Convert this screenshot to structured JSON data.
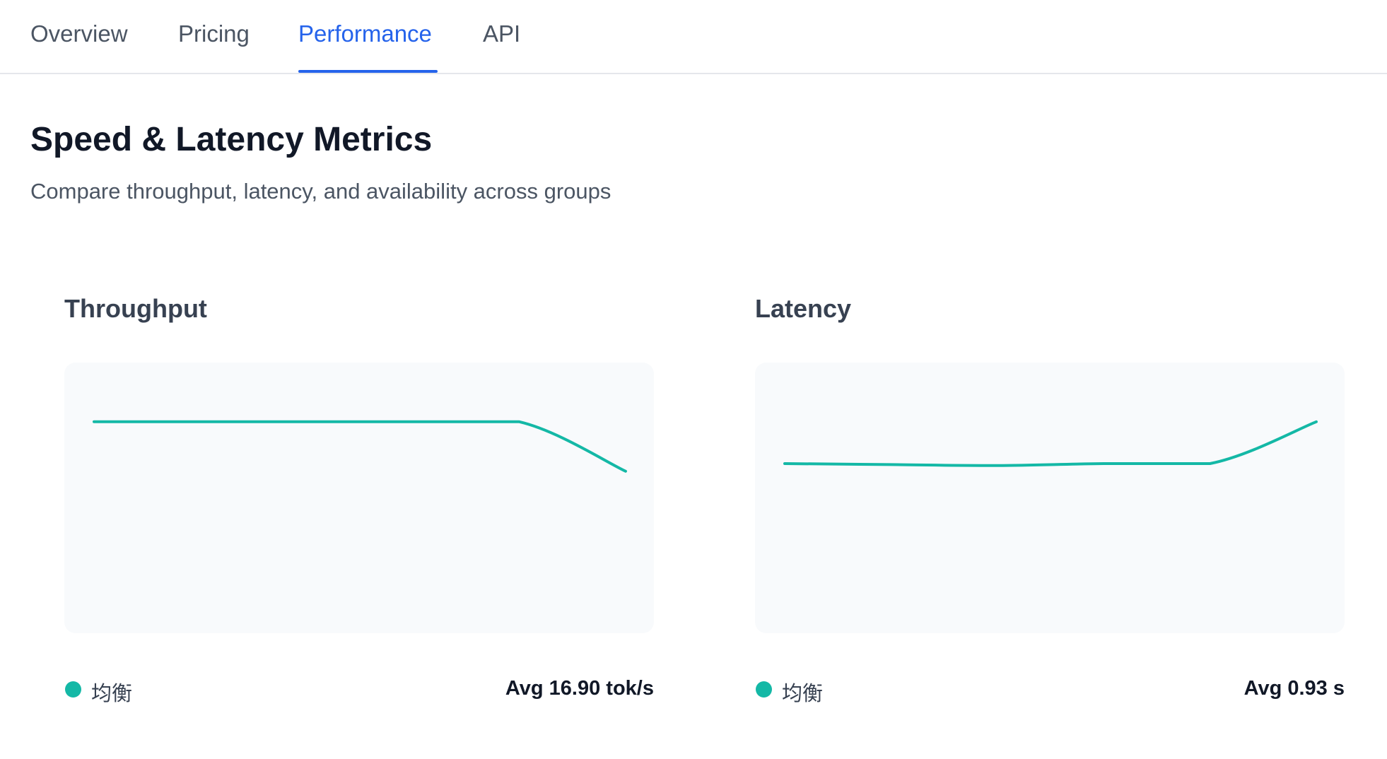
{
  "tabs": [
    {
      "label": "Overview"
    },
    {
      "label": "Pricing"
    },
    {
      "label": "Performance",
      "active": true
    },
    {
      "label": "API"
    }
  ],
  "page": {
    "title": "Speed & Latency Metrics",
    "subtitle": "Compare throughput, latency, and availability across groups"
  },
  "colors": {
    "accent": "#2563eb",
    "series": "#14b8a6"
  },
  "panels": [
    {
      "title": "Throughput",
      "legend_label": "均衡",
      "avg_text": "Avg 16.90 tok/s"
    },
    {
      "title": "Latency",
      "legend_label": "均衡",
      "avg_text": "Avg 0.93 s"
    }
  ],
  "chart_data": [
    {
      "type": "line",
      "title": "Throughput",
      "x": [
        0,
        1,
        2,
        3,
        4,
        5
      ],
      "series": [
        {
          "name": "均衡",
          "values": [
            1.0,
            1.0,
            1.0,
            1.0,
            1.0,
            0.74
          ]
        }
      ],
      "ylim": [
        0,
        1.2
      ],
      "grid": false
    },
    {
      "type": "line",
      "title": "Latency",
      "x": [
        0,
        1,
        2,
        3,
        4,
        5
      ],
      "series": [
        {
          "name": "均衡",
          "values": [
            0.78,
            0.775,
            0.77,
            0.78,
            0.78,
            1.0
          ]
        }
      ],
      "ylim": [
        0,
        1.2
      ],
      "grid": false
    }
  ]
}
